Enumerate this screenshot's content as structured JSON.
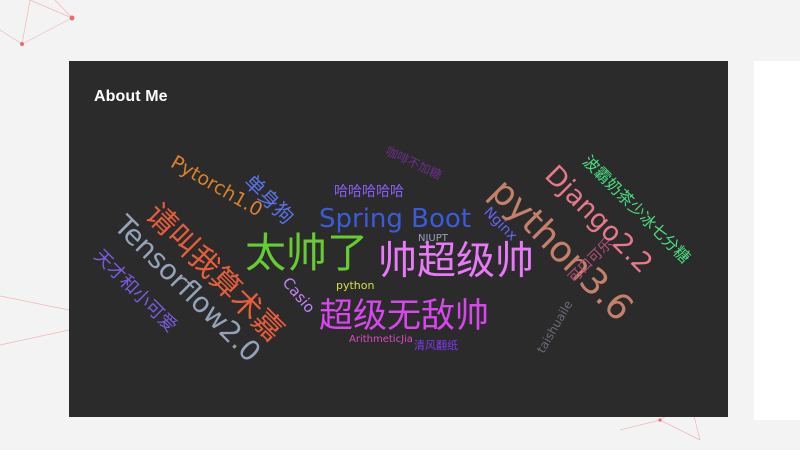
{
  "card": {
    "title": "About Me"
  },
  "cloud_words": [
    {
      "text": "太帅了",
      "color": "#66cc33"
    },
    {
      "text": "帅超级帅",
      "color": "#e879f9"
    },
    {
      "text": "超级无敌帅",
      "color": "#d946ef"
    },
    {
      "text": "Tensorflow2.0",
      "color": "#94a3b8"
    },
    {
      "text": "请叫我算术嘉",
      "color": "#e85d3b"
    },
    {
      "text": "python3.6",
      "color": "#c4806a"
    },
    {
      "text": "Django2.2",
      "color": "#e8798a"
    },
    {
      "text": "Spring Boot",
      "color": "#3b5bdb"
    },
    {
      "text": "Pytorch1.0",
      "color": "#d9822b"
    },
    {
      "text": "单身狗",
      "color": "#5b73e8"
    },
    {
      "text": "天才和小可爱",
      "color": "#7c5ce0"
    },
    {
      "text": "波霸奶茶少冰七分糖",
      "color": "#4ade80"
    },
    {
      "text": "哈哈哈哈哈",
      "color": "#8b5cf6"
    },
    {
      "text": "Nginx",
      "color": "#6366f1"
    },
    {
      "text": "Casio",
      "color": "#c084fc"
    },
    {
      "text": "可口可乐",
      "color": "#b5507a"
    },
    {
      "text": "NJUPT",
      "color": "#94a3b8"
    },
    {
      "text": "python",
      "color": "#d6e04a"
    },
    {
      "text": "ArithmeticJia",
      "color": "#e04ac2"
    },
    {
      "text": "清风翻纸",
      "color": "#7c3aed"
    },
    {
      "text": "taishuaile",
      "color": "#6b6b7b"
    },
    {
      "text": "咖啡不加糖",
      "color": "#6b2f8a"
    }
  ]
}
